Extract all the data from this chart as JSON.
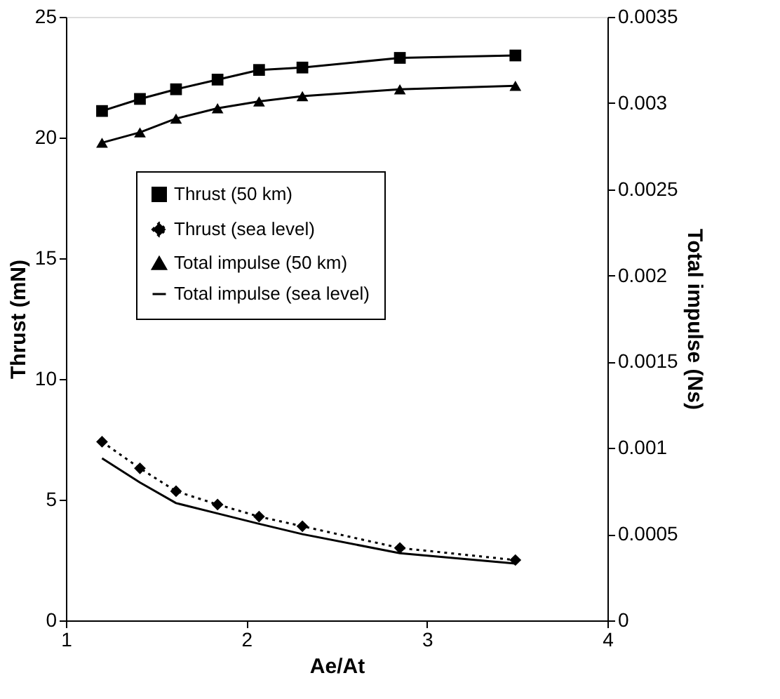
{
  "chart_data": {
    "type": "line",
    "xlabel": "Ae/At",
    "ylabel": "Thrust (mN)",
    "y2label": "Total impulse (Ns)",
    "xlim": [
      1,
      4
    ],
    "xticks": [
      1,
      2,
      3,
      4
    ],
    "ylim": [
      0,
      25
    ],
    "yticks": [
      0,
      5,
      10,
      15,
      20,
      25
    ],
    "y2lim": [
      0,
      0.0035
    ],
    "y2ticks": [
      0,
      0.0005,
      0.001,
      0.0015,
      0.002,
      0.0025,
      0.003,
      0.0035
    ],
    "grid": false,
    "legend": "left",
    "x": [
      1.2,
      1.41,
      1.61,
      1.84,
      2.07,
      2.31,
      2.85,
      3.49
    ],
    "series": [
      {
        "name": "Thrust (50 km)",
        "color": "#000000",
        "marker": "square",
        "line_style": "solid",
        "values": [
          21.1,
          21.6,
          22.0,
          22.4,
          22.8,
          22.9,
          23.3,
          23.4
        ]
      },
      {
        "name": "Thrust (sea level)",
        "color": "#000000",
        "marker": "diamond",
        "line_style": "dotted",
        "values": [
          7.4,
          6.3,
          5.35,
          4.8,
          4.3,
          3.9,
          3.0,
          2.5
        ]
      },
      {
        "name": "Total impulse (50 km)",
        "color": "#000000",
        "marker": "triangle",
        "line_style": "solid",
        "axis": "y2",
        "values": [
          0.00277,
          0.00283,
          0.00291,
          0.00297,
          0.00301,
          0.00304,
          0.00308,
          0.0031
        ]
      },
      {
        "name": "Total impulse (sea level)",
        "color": "#000000",
        "marker": "none",
        "line_style": "solid",
        "axis": "y2",
        "values": [
          0.00094,
          0.0008,
          0.00068,
          0.00062,
          0.00056,
          0.0005,
          0.00039,
          0.00033
        ]
      }
    ]
  }
}
